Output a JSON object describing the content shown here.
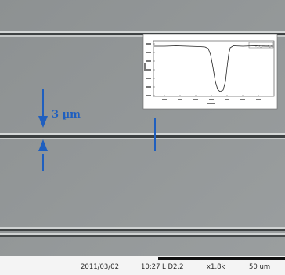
{
  "annotation": {
    "width_label": "3 µm",
    "color": "#1f5fbf"
  },
  "info_bar": {
    "date": "2011/03/02",
    "time": "10:27",
    "detector": "L D2.2",
    "magnification": "x1.8k",
    "scale": "50 um"
  },
  "inset": {
    "legend": "w_1_profile_1"
  }
}
